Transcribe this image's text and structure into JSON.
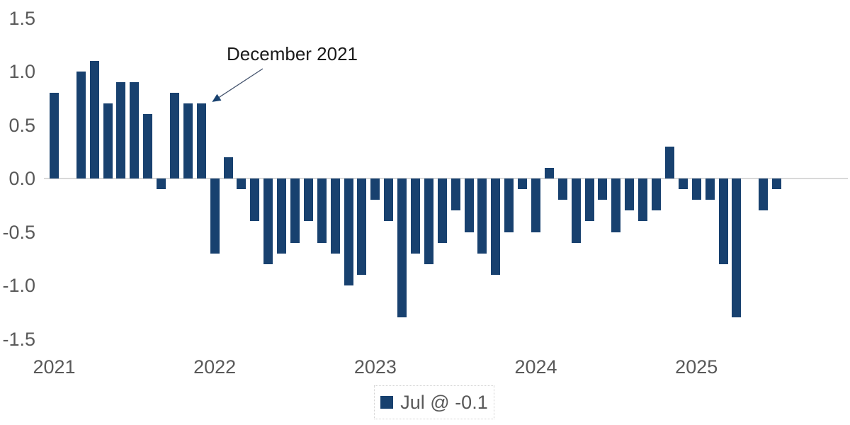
{
  "chart_data": {
    "type": "bar",
    "title": "",
    "xlabel": "",
    "ylabel": "",
    "ylim": [
      -1.5,
      1.5
    ],
    "grid": false,
    "x": [
      "Jan 2021",
      "Feb 2021",
      "Mar 2021",
      "Apr 2021",
      "May 2021",
      "Jun 2021",
      "Jul 2021",
      "Aug 2021",
      "Sep 2021",
      "Oct 2021",
      "Nov 2021",
      "Dec 2021",
      "Jan 2022",
      "Feb 2022",
      "Mar 2022",
      "Apr 2022",
      "May 2022",
      "Jun 2022",
      "Jul 2022",
      "Aug 2022",
      "Sep 2022",
      "Oct 2022",
      "Nov 2022",
      "Dec 2022",
      "Jan 2023",
      "Feb 2023",
      "Mar 2023",
      "Apr 2023",
      "May 2023",
      "Jun 2023",
      "Jul 2023",
      "Aug 2023",
      "Sep 2023",
      "Oct 2023",
      "Nov 2023",
      "Dec 2023",
      "Jan 2024",
      "Feb 2024",
      "Mar 2024",
      "Apr 2024",
      "May 2024",
      "Jun 2024",
      "Jul 2024",
      "Aug 2024",
      "Sep 2024",
      "Oct 2024",
      "Nov 2024",
      "Dec 2024",
      "Jan 2025",
      "Feb 2025",
      "Mar 2025",
      "Apr 2025",
      "May 2025",
      "Jun 2025",
      "Jul 2025"
    ],
    "values": [
      0.8,
      0.0,
      1.0,
      1.1,
      0.7,
      0.9,
      0.9,
      0.6,
      -0.1,
      0.8,
      0.7,
      0.7,
      -0.7,
      0.2,
      -0.1,
      -0.4,
      -0.8,
      -0.7,
      -0.6,
      -0.4,
      -0.6,
      -0.7,
      -1.0,
      -0.9,
      -0.2,
      -0.4,
      -1.3,
      -0.7,
      -0.8,
      -0.6,
      -0.3,
      -0.5,
      -0.7,
      -0.9,
      -0.5,
      -0.1,
      -0.5,
      0.1,
      -0.2,
      -0.6,
      -0.4,
      -0.2,
      -0.5,
      -0.3,
      -0.4,
      -0.3,
      0.3,
      -0.1,
      -0.2,
      -0.2,
      -0.8,
      -1.3,
      0.0,
      -0.3,
      -0.1
    ],
    "ytick_labels": [
      "1.5",
      "1.0",
      "0.5",
      "0.0",
      "-0.5",
      "-1.0",
      "-1.5"
    ],
    "xtick_labels": [
      "2021",
      "2022",
      "2023",
      "2024",
      "2025"
    ],
    "legend": {
      "label": "Jul @ -0.1",
      "position": "bottom-center"
    },
    "annotation": {
      "text": "December 2021",
      "target": "Dec 2021"
    },
    "colors": {
      "bar": "#18416f",
      "axis_label": "#595959",
      "zero_line": "#d9d9d9",
      "annotation_text": "#1a1a1a",
      "arrow_line": "#44536d",
      "arrow_head": "#18416f",
      "legend_border": "#d2d2d2"
    }
  }
}
